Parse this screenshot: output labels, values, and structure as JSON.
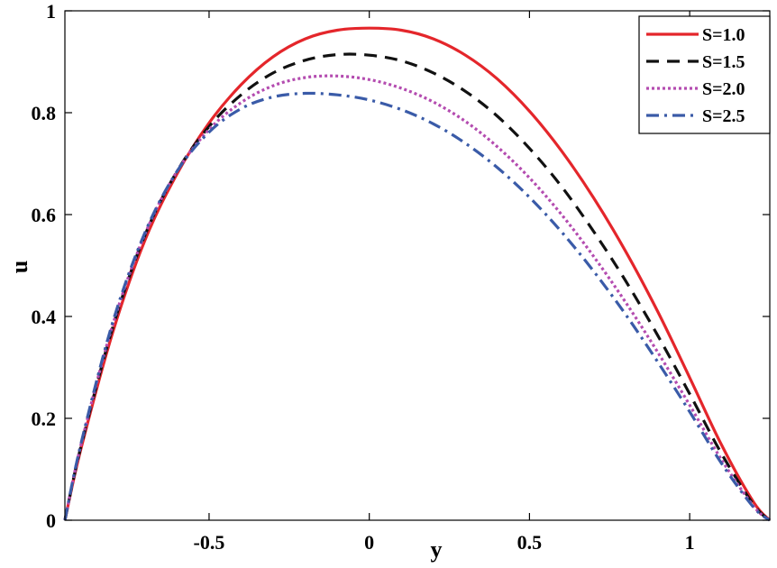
{
  "chart_data": {
    "type": "line",
    "title": "",
    "xlabel": "y",
    "ylabel": "u",
    "xlim": [
      -0.95,
      1.25
    ],
    "ylim": [
      0,
      1
    ],
    "x_ticks": [
      -0.5,
      0,
      0.5,
      1
    ],
    "x_tick_labels": [
      "-0.5",
      "0",
      "0.5",
      "1"
    ],
    "y_ticks": [
      0,
      0.2,
      0.4,
      0.6,
      0.8,
      1
    ],
    "y_tick_labels": [
      "0",
      "0.2",
      "0.4",
      "0.6",
      "0.8",
      "1"
    ],
    "grid": false,
    "legend_position": "top-right",
    "series": [
      {
        "name": "S=1.0",
        "color": "#e4262b",
        "style": "solid",
        "x": [
          -0.95,
          -0.9,
          -0.8,
          -0.7,
          -0.6,
          -0.5,
          -0.4,
          -0.3,
          -0.2,
          -0.1,
          0,
          0.1,
          0.2,
          0.3,
          0.4,
          0.5,
          0.6,
          0.7,
          0.8,
          0.9,
          1.0,
          1.1,
          1.2,
          1.25
        ],
        "y": [
          0,
          0.14,
          0.37,
          0.55,
          0.68,
          0.78,
          0.855,
          0.91,
          0.945,
          0.962,
          0.966,
          0.962,
          0.945,
          0.913,
          0.866,
          0.803,
          0.725,
          0.633,
          0.528,
          0.41,
          0.28,
          0.147,
          0.035,
          0
        ]
      },
      {
        "name": "S=1.5",
        "color": "#111111",
        "style": "dashed",
        "x": [
          -0.95,
          -0.9,
          -0.8,
          -0.7,
          -0.6,
          -0.5,
          -0.4,
          -0.3,
          -0.2,
          -0.1,
          0,
          0.1,
          0.2,
          0.3,
          0.4,
          0.5,
          0.6,
          0.7,
          0.8,
          0.9,
          1.0,
          1.1,
          1.2,
          1.25
        ],
        "y": [
          0,
          0.145,
          0.38,
          0.56,
          0.685,
          0.773,
          0.835,
          0.878,
          0.903,
          0.914,
          0.913,
          0.902,
          0.878,
          0.842,
          0.793,
          0.73,
          0.655,
          0.567,
          0.47,
          0.363,
          0.248,
          0.13,
          0.03,
          0
        ]
      },
      {
        "name": "S=2.0",
        "color": "#b44cb0",
        "style": "dotted",
        "x": [
          -0.95,
          -0.9,
          -0.8,
          -0.7,
          -0.6,
          -0.5,
          -0.4,
          -0.3,
          -0.2,
          -0.1,
          0,
          0.1,
          0.2,
          0.3,
          0.4,
          0.5,
          0.6,
          0.7,
          0.8,
          0.9,
          1.0,
          1.1,
          1.2,
          1.25
        ],
        "y": [
          0,
          0.148,
          0.385,
          0.562,
          0.685,
          0.767,
          0.82,
          0.853,
          0.869,
          0.872,
          0.865,
          0.848,
          0.821,
          0.783,
          0.733,
          0.672,
          0.6,
          0.518,
          0.428,
          0.33,
          0.226,
          0.118,
          0.027,
          0
        ]
      },
      {
        "name": "S=2.5",
        "color": "#3a5ba8",
        "style": "dashdot",
        "x": [
          -0.95,
          -0.9,
          -0.8,
          -0.7,
          -0.6,
          -0.5,
          -0.4,
          -0.3,
          -0.2,
          -0.1,
          0,
          0.1,
          0.2,
          0.3,
          0.4,
          0.5,
          0.6,
          0.7,
          0.8,
          0.9,
          1.0,
          1.1,
          1.2,
          1.25
        ],
        "y": [
          0,
          0.15,
          0.39,
          0.565,
          0.685,
          0.762,
          0.808,
          0.831,
          0.838,
          0.835,
          0.825,
          0.806,
          0.778,
          0.74,
          0.692,
          0.634,
          0.566,
          0.489,
          0.404,
          0.311,
          0.213,
          0.111,
          0.025,
          0
        ]
      }
    ]
  }
}
